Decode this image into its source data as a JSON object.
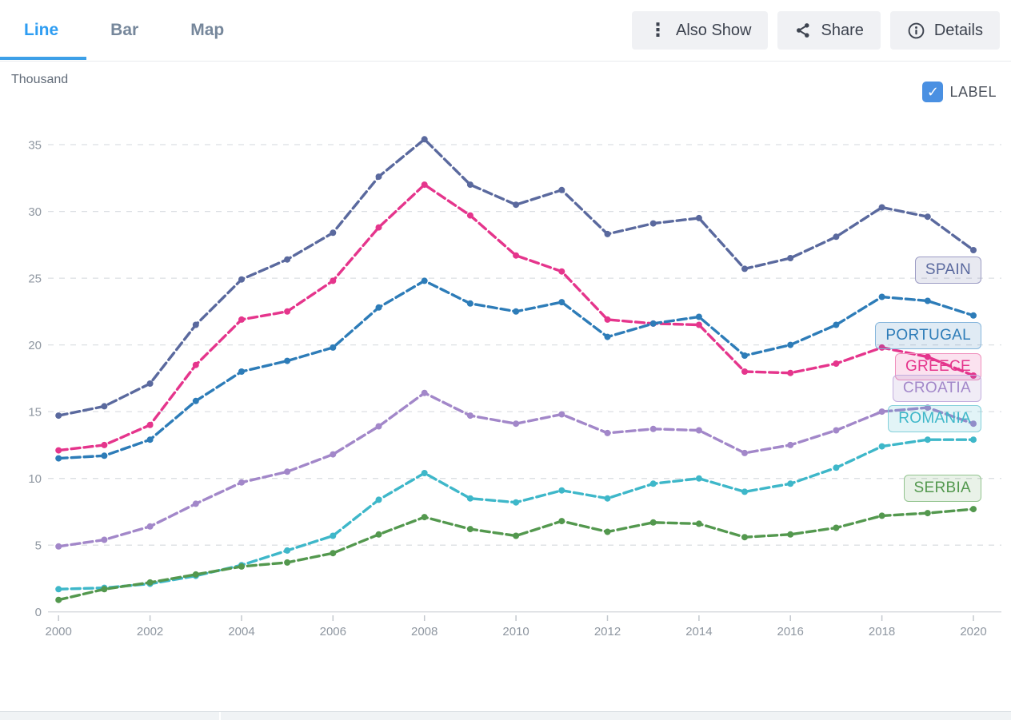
{
  "tabs": {
    "line": "Line",
    "bar": "Bar",
    "map": "Map"
  },
  "toolbar": {
    "also_show": "Also Show",
    "share": "Share",
    "details": "Details"
  },
  "label_toggle": {
    "text": "LABEL",
    "checked": true,
    "checkbox_color": "#4a90e2"
  },
  "chart_data": {
    "type": "line",
    "unit_label": "Thousand",
    "x": [
      2000,
      2001,
      2002,
      2003,
      2004,
      2005,
      2006,
      2007,
      2008,
      2009,
      2010,
      2011,
      2012,
      2013,
      2014,
      2015,
      2016,
      2017,
      2018,
      2019,
      2020
    ],
    "x_tick_step": 2,
    "ylim": [
      0,
      35
    ],
    "yticks": [
      0,
      5,
      10,
      15,
      20,
      25,
      30,
      35
    ],
    "grid": "horizontal-dashed",
    "line_style": "dashed-with-dot-markers",
    "legend_position": "inline-right-labels",
    "series": [
      {
        "name": "SPAIN",
        "color": "#5a699e",
        "label_bg": "rgba(99,110,160,0.15)",
        "label_border": "#9c9cc4",
        "label_py": 338,
        "values": [
          14.7,
          15.4,
          17.1,
          21.5,
          24.9,
          26.4,
          28.4,
          32.6,
          35.4,
          32.0,
          30.5,
          31.6,
          28.3,
          29.1,
          29.5,
          25.7,
          26.5,
          28.1,
          30.3,
          29.6,
          27.1
        ]
      },
      {
        "name": "GREECE",
        "color": "#e5358c",
        "label_bg": "rgba(229,53,140,0.14)",
        "label_border": "#f090bd",
        "label_py": 459,
        "values": [
          12.1,
          12.5,
          14.0,
          18.5,
          21.9,
          22.5,
          24.8,
          28.8,
          32.0,
          29.7,
          26.7,
          25.5,
          21.9,
          21.6,
          21.5,
          18.0,
          17.9,
          18.6,
          19.8,
          19.1,
          17.7
        ]
      },
      {
        "name": "PORTUGAL",
        "color": "#2d7cb8",
        "label_bg": "rgba(45,124,184,0.15)",
        "label_border": "#86b6dc",
        "label_py": 420,
        "values": [
          11.5,
          11.7,
          12.9,
          15.8,
          18.0,
          18.8,
          19.8,
          22.8,
          24.8,
          23.1,
          22.5,
          23.2,
          20.6,
          21.6,
          22.1,
          19.2,
          20.0,
          21.5,
          23.6,
          23.3,
          22.2
        ]
      },
      {
        "name": "CROATIA",
        "color": "#a287c9",
        "label_bg": "rgba(162,135,201,0.16)",
        "label_border": "#c3aede",
        "label_py": 486,
        "values": [
          4.9,
          5.4,
          6.4,
          8.1,
          9.7,
          10.5,
          11.8,
          13.9,
          16.4,
          14.7,
          14.1,
          14.8,
          13.4,
          13.7,
          13.6,
          11.9,
          12.5,
          13.6,
          15.0,
          15.3,
          14.1
        ]
      },
      {
        "name": "ROMANIA",
        "color": "#3eb7c9",
        "label_bg": "rgba(62,183,201,0.15)",
        "label_border": "#83d0da",
        "label_py": 524,
        "values": [
          1.7,
          1.8,
          2.1,
          2.7,
          3.5,
          4.6,
          5.7,
          8.4,
          10.4,
          8.5,
          8.2,
          9.1,
          8.5,
          9.6,
          10.0,
          9.0,
          9.6,
          10.8,
          12.4,
          12.9,
          12.9
        ]
      },
      {
        "name": "SERBIA",
        "color": "#53984e",
        "label_bg": "rgba(83,152,78,0.13)",
        "label_border": "#93c48f",
        "label_py": 611,
        "values": [
          0.9,
          1.7,
          2.2,
          2.8,
          3.4,
          3.7,
          4.4,
          5.8,
          7.1,
          6.2,
          5.7,
          6.8,
          6.0,
          6.7,
          6.6,
          5.6,
          5.8,
          6.3,
          7.2,
          7.4,
          7.7
        ]
      }
    ]
  }
}
